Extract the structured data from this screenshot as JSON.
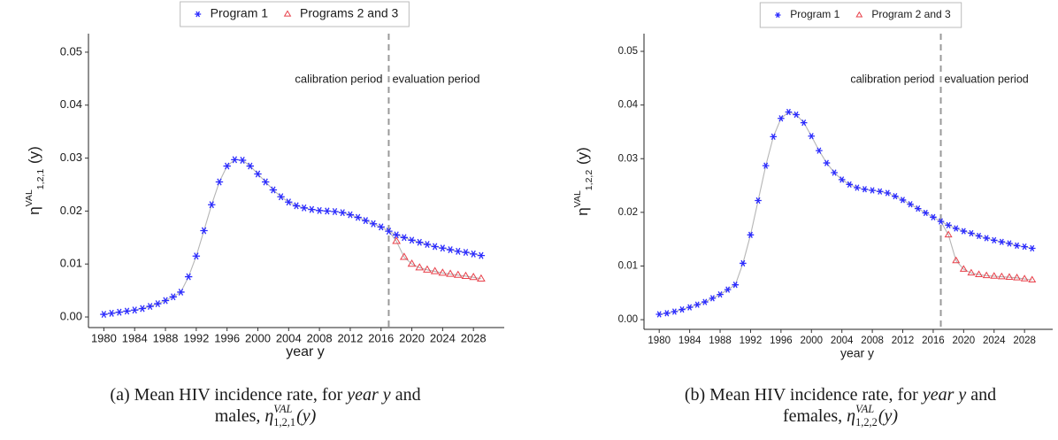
{
  "chart_data": [
    {
      "type": "line",
      "y_label": {
        "symbol": "η",
        "sup": "VAL",
        "sub": "1,2,1",
        "arg": " (y)"
      },
      "x_label": "year y",
      "xlim": [
        1978,
        2032
      ],
      "xticks": [
        1980,
        1984,
        1988,
        1992,
        1996,
        2000,
        2004,
        2008,
        2012,
        2016,
        2020,
        2024,
        2028
      ],
      "ylim": [
        -0.002,
        0.0535
      ],
      "yticks": [
        {
          "value": 0,
          "label": "0.00"
        },
        {
          "value": 0.01,
          "label": "0.01"
        },
        {
          "value": 0.02,
          "label": "0.02"
        },
        {
          "value": 0.03,
          "label": "0.03"
        },
        {
          "value": 0.04,
          "label": "0.04"
        },
        {
          "value": 0.05,
          "label": "0.05"
        }
      ],
      "vline": 2017,
      "vline_color": "#9a9a9a",
      "annotations": [
        "calibration period",
        "evaluation period"
      ],
      "line_color": "#b5b5b5",
      "legend_position": "top",
      "series": [
        {
          "name": "Program 1",
          "color": "#2b2bff",
          "marker": "star",
          "x": [
            1980,
            1981,
            1982,
            1983,
            1984,
            1985,
            1986,
            1987,
            1988,
            1989,
            1990,
            1991,
            1992,
            1993,
            1994,
            1995,
            1996,
            1997,
            1998,
            1999,
            2000,
            2001,
            2002,
            2003,
            2004,
            2005,
            2006,
            2007,
            2008,
            2009,
            2010,
            2011,
            2012,
            2013,
            2014,
            2015,
            2016,
            2017,
            2018,
            2019,
            2020,
            2021,
            2022,
            2023,
            2024,
            2025,
            2026,
            2027,
            2028,
            2029
          ],
          "values": [
            0.0005,
            0.0007,
            0.0009,
            0.0011,
            0.0013,
            0.0016,
            0.002,
            0.0025,
            0.0031,
            0.0038,
            0.0047,
            0.0076,
            0.0115,
            0.0163,
            0.0212,
            0.0255,
            0.0285,
            0.0297,
            0.0296,
            0.0285,
            0.027,
            0.0255,
            0.024,
            0.0227,
            0.0217,
            0.021,
            0.0206,
            0.0203,
            0.0201,
            0.02,
            0.0199,
            0.0197,
            0.0193,
            0.0188,
            0.0182,
            0.0176,
            0.017,
            0.0162,
            0.0155,
            0.015,
            0.0145,
            0.0141,
            0.0137,
            0.0133,
            0.013,
            0.0127,
            0.0124,
            0.0122,
            0.0119,
            0.0116
          ]
        },
        {
          "name": "Programs 2 and 3",
          "color": "#e8404a",
          "marker": "triangle",
          "x": [
            2018,
            2019,
            2020,
            2021,
            2022,
            2023,
            2024,
            2025,
            2026,
            2027,
            2028,
            2029
          ],
          "values": [
            0.0143,
            0.0113,
            0.01,
            0.0093,
            0.0089,
            0.0086,
            0.0083,
            0.0081,
            0.0079,
            0.0077,
            0.0075,
            0.0072
          ]
        }
      ],
      "caption": [
        [
          {
            "text": "(a) Mean HIV incidence rate, for "
          },
          {
            "text": "year y",
            "italic": true
          },
          {
            "text": " and"
          }
        ],
        [
          {
            "text": "males, "
          },
          {
            "symbol": "η",
            "sup": "VAL",
            "sub": "1,2,1",
            "arg": "(y)",
            "italic": true
          }
        ]
      ]
    },
    {
      "type": "line",
      "y_label": {
        "symbol": "η",
        "sup": "VAL",
        "sub": "1,2,2",
        "arg": " (y)"
      },
      "x_label": "year y",
      "xlim": [
        1978,
        2031.7
      ],
      "xticks": [
        1980,
        1984,
        1988,
        1992,
        1996,
        2000,
        2004,
        2008,
        2012,
        2016,
        2020,
        2024,
        2028
      ],
      "ylim": [
        -0.0018,
        0.0533
      ],
      "yticks": [
        {
          "value": 0,
          "label": "0.00"
        },
        {
          "value": 0.01,
          "label": "0.01"
        },
        {
          "value": 0.02,
          "label": "0.02"
        },
        {
          "value": 0.03,
          "label": "0.03"
        },
        {
          "value": 0.04,
          "label": "0.04"
        },
        {
          "value": 0.05,
          "label": "0.05"
        }
      ],
      "vline": 2017,
      "vline_color": "#9a9a9a",
      "annotations": [
        "calibration period",
        "evaluation period"
      ],
      "line_color": "#b5b5b5",
      "legend_position": "top",
      "series": [
        {
          "name": "Program 1",
          "color": "#2b2bff",
          "marker": "star",
          "x": [
            1980,
            1981,
            1982,
            1983,
            1984,
            1985,
            1986,
            1987,
            1988,
            1989,
            1990,
            1991,
            1992,
            1993,
            1994,
            1995,
            1996,
            1997,
            1998,
            1999,
            2000,
            2001,
            2002,
            2003,
            2004,
            2005,
            2006,
            2007,
            2008,
            2009,
            2010,
            2011,
            2012,
            2013,
            2014,
            2015,
            2016,
            2017,
            2018,
            2019,
            2020,
            2021,
            2022,
            2023,
            2024,
            2025,
            2026,
            2027,
            2028,
            2029
          ],
          "values": [
            0.001,
            0.0012,
            0.0015,
            0.0019,
            0.0023,
            0.0028,
            0.0033,
            0.004,
            0.0047,
            0.0056,
            0.0065,
            0.0105,
            0.0158,
            0.0222,
            0.0287,
            0.0341,
            0.0375,
            0.0387,
            0.0382,
            0.0367,
            0.0342,
            0.0315,
            0.0292,
            0.0274,
            0.0261,
            0.0252,
            0.0246,
            0.0243,
            0.0241,
            0.0239,
            0.0236,
            0.023,
            0.0223,
            0.0215,
            0.0207,
            0.0199,
            0.0191,
            0.0183,
            0.0176,
            0.017,
            0.0165,
            0.0161,
            0.0156,
            0.0152,
            0.0148,
            0.0145,
            0.0142,
            0.0138,
            0.0136,
            0.0133
          ]
        },
        {
          "name": "Program 2 and 3",
          "color": "#e8404a",
          "marker": "triangle",
          "x": [
            2018,
            2019,
            2020,
            2021,
            2022,
            2023,
            2024,
            2025,
            2026,
            2027,
            2028,
            2029
          ],
          "values": [
            0.0158,
            0.011,
            0.0094,
            0.0087,
            0.0084,
            0.0082,
            0.0081,
            0.008,
            0.0079,
            0.0078,
            0.0076,
            0.0074
          ]
        }
      ],
      "caption": [
        [
          {
            "text": "(b) Mean HIV incidence rate, for "
          },
          {
            "text": "year y",
            "italic": true
          },
          {
            "text": " and"
          }
        ],
        [
          {
            "text": "females, "
          },
          {
            "symbol": "η",
            "sup": "VAL",
            "sub": "1,2,2",
            "arg": "(y)",
            "italic": true
          }
        ]
      ]
    }
  ]
}
